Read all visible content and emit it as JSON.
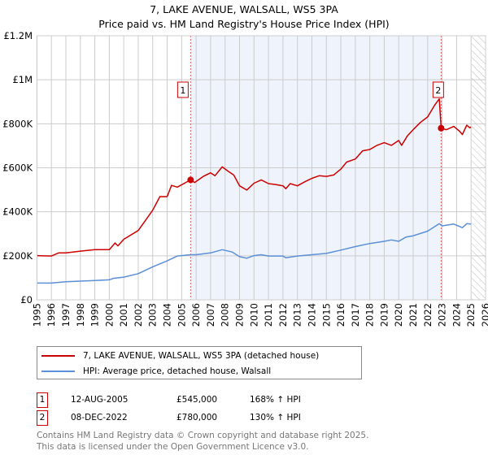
{
  "title": "7, LAKE AVENUE, WALSALL, WS5 3PA",
  "subtitle": "Price paid vs. HM Land Registry's House Price Index (HPI)",
  "chart_data": {
    "type": "line",
    "title": "7, LAKE AVENUE, WALSALL, WS5 3PA — Price paid vs. HM Land Registry's House Price Index (HPI)",
    "xlim": [
      1995,
      2026
    ],
    "ylim": [
      0,
      1200000
    ],
    "x_ticks": [
      "1995",
      "1996",
      "1997",
      "1998",
      "1999",
      "2000",
      "2001",
      "2002",
      "2003",
      "2004",
      "2005",
      "2006",
      "2007",
      "2008",
      "2009",
      "2010",
      "2011",
      "2012",
      "2013",
      "2014",
      "2015",
      "2016",
      "2017",
      "2018",
      "2019",
      "2020",
      "2021",
      "2022",
      "2023",
      "2024",
      "2025",
      "2026"
    ],
    "y_ticks": [
      {
        "v": 0,
        "label": "£0"
      },
      {
        "v": 200000,
        "label": "£200K"
      },
      {
        "v": 400000,
        "label": "£400K"
      },
      {
        "v": 600000,
        "label": "£600K"
      },
      {
        "v": 800000,
        "label": "£800K"
      },
      {
        "v": 1000000,
        "label": "£1M"
      },
      {
        "v": 1200000,
        "label": "£1.2M"
      }
    ],
    "grid": true,
    "shaded_range": [
      2005.62,
      2022.93
    ],
    "forecast_hatch_from": 2025.05,
    "series": [
      {
        "name": "7, LAKE AVENUE, WALSALL, WS5 3PA (detached house)",
        "color": "#cc0000",
        "points": [
          [
            1995,
            201000
          ],
          [
            1996,
            199000
          ],
          [
            1996.5,
            213000
          ],
          [
            1997,
            213000
          ],
          [
            1998,
            221000
          ],
          [
            1999,
            228000
          ],
          [
            2000,
            228000
          ],
          [
            2000.4,
            258000
          ],
          [
            2000.6,
            245000
          ],
          [
            2001,
            275000
          ],
          [
            2002,
            315000
          ],
          [
            2003,
            407000
          ],
          [
            2003.5,
            469000
          ],
          [
            2004,
            469000
          ],
          [
            2004.3,
            520000
          ],
          [
            2004.7,
            512000
          ],
          [
            2005.62,
            545000
          ],
          [
            2005.9,
            533000
          ],
          [
            2006.5,
            561000
          ],
          [
            2007,
            577000
          ],
          [
            2007.3,
            564000
          ],
          [
            2007.8,
            604000
          ],
          [
            2008.2,
            585000
          ],
          [
            2008.6,
            567000
          ],
          [
            2009,
            518000
          ],
          [
            2009.5,
            499000
          ],
          [
            2010,
            530000
          ],
          [
            2010.5,
            545000
          ],
          [
            2011,
            528000
          ],
          [
            2011.5,
            524000
          ],
          [
            2012,
            518000
          ],
          [
            2012.2,
            505000
          ],
          [
            2012.5,
            528000
          ],
          [
            2013,
            518000
          ],
          [
            2013.5,
            536000
          ],
          [
            2014,
            552000
          ],
          [
            2014.5,
            564000
          ],
          [
            2015,
            561000
          ],
          [
            2015.5,
            567000
          ],
          [
            2016,
            594000
          ],
          [
            2016.4,
            626000
          ],
          [
            2017,
            640000
          ],
          [
            2017.5,
            677000
          ],
          [
            2018,
            683000
          ],
          [
            2018.5,
            702000
          ],
          [
            2019,
            714000
          ],
          [
            2019.5,
            702000
          ],
          [
            2020,
            724000
          ],
          [
            2020.2,
            702000
          ],
          [
            2020.6,
            745000
          ],
          [
            2021,
            773000
          ],
          [
            2021.5,
            806000
          ],
          [
            2022,
            831000
          ],
          [
            2022.5,
            886000
          ],
          [
            2022.8,
            913000
          ],
          [
            2022.93,
            780000
          ],
          [
            2023.3,
            773000
          ],
          [
            2023.8,
            788000
          ],
          [
            2024.2,
            766000
          ],
          [
            2024.4,
            751000
          ],
          [
            2024.7,
            794000
          ],
          [
            2024.9,
            782000
          ],
          [
            2025,
            785000
          ]
        ]
      },
      {
        "name": "HPI: Average price, detached house, Walsall",
        "color": "#5b8fd6",
        "points": [
          [
            1995,
            76000
          ],
          [
            1996,
            76000
          ],
          [
            1997,
            82000
          ],
          [
            1998,
            85000
          ],
          [
            1999,
            88000
          ],
          [
            2000,
            91000
          ],
          [
            2000.3,
            98000
          ],
          [
            2001,
            103000
          ],
          [
            2002,
            119000
          ],
          [
            2003,
            150000
          ],
          [
            2004,
            177000
          ],
          [
            2004.7,
            199000
          ],
          [
            2005.62,
            205000
          ],
          [
            2006,
            205000
          ],
          [
            2007,
            213000
          ],
          [
            2007.8,
            228000
          ],
          [
            2008.5,
            217000
          ],
          [
            2009,
            196000
          ],
          [
            2009.5,
            189000
          ],
          [
            2010,
            201000
          ],
          [
            2010.5,
            205000
          ],
          [
            2011,
            199000
          ],
          [
            2012,
            199000
          ],
          [
            2012.2,
            191000
          ],
          [
            2013,
            199000
          ],
          [
            2014,
            205000
          ],
          [
            2015,
            211000
          ],
          [
            2016,
            226000
          ],
          [
            2017,
            242000
          ],
          [
            2018,
            256000
          ],
          [
            2019,
            266000
          ],
          [
            2019.5,
            272000
          ],
          [
            2020,
            266000
          ],
          [
            2020.5,
            285000
          ],
          [
            2021,
            291000
          ],
          [
            2022,
            312000
          ],
          [
            2022.8,
            346000
          ],
          [
            2023,
            336000
          ],
          [
            2023.8,
            344000
          ],
          [
            2024.4,
            328000
          ],
          [
            2024.7,
            346000
          ],
          [
            2025,
            344000
          ]
        ]
      }
    ],
    "annotations": [
      {
        "label": "1",
        "x": 2005.62,
        "y": 545000
      },
      {
        "label": "2",
        "x": 2022.93,
        "y": 780000
      }
    ]
  },
  "legend": {
    "property": "7, LAKE AVENUE, WALSALL, WS5 3PA (detached house)",
    "hpi": "HPI: Average price, detached house, Walsall"
  },
  "sales": [
    {
      "num": "1",
      "date": "12-AUG-2005",
      "price": "£545,000",
      "hpi": "168% ↑ HPI"
    },
    {
      "num": "2",
      "date": "08-DEC-2022",
      "price": "£780,000",
      "hpi": "130% ↑ HPI"
    }
  ],
  "footer": {
    "line1": "Contains HM Land Registry data © Crown copyright and database right 2025.",
    "line2": "This data is licensed under the Open Government Licence v3.0."
  },
  "colors": {
    "property": "#cc0000",
    "hpi": "#5b8fd6",
    "shade": "#eef3fc"
  }
}
